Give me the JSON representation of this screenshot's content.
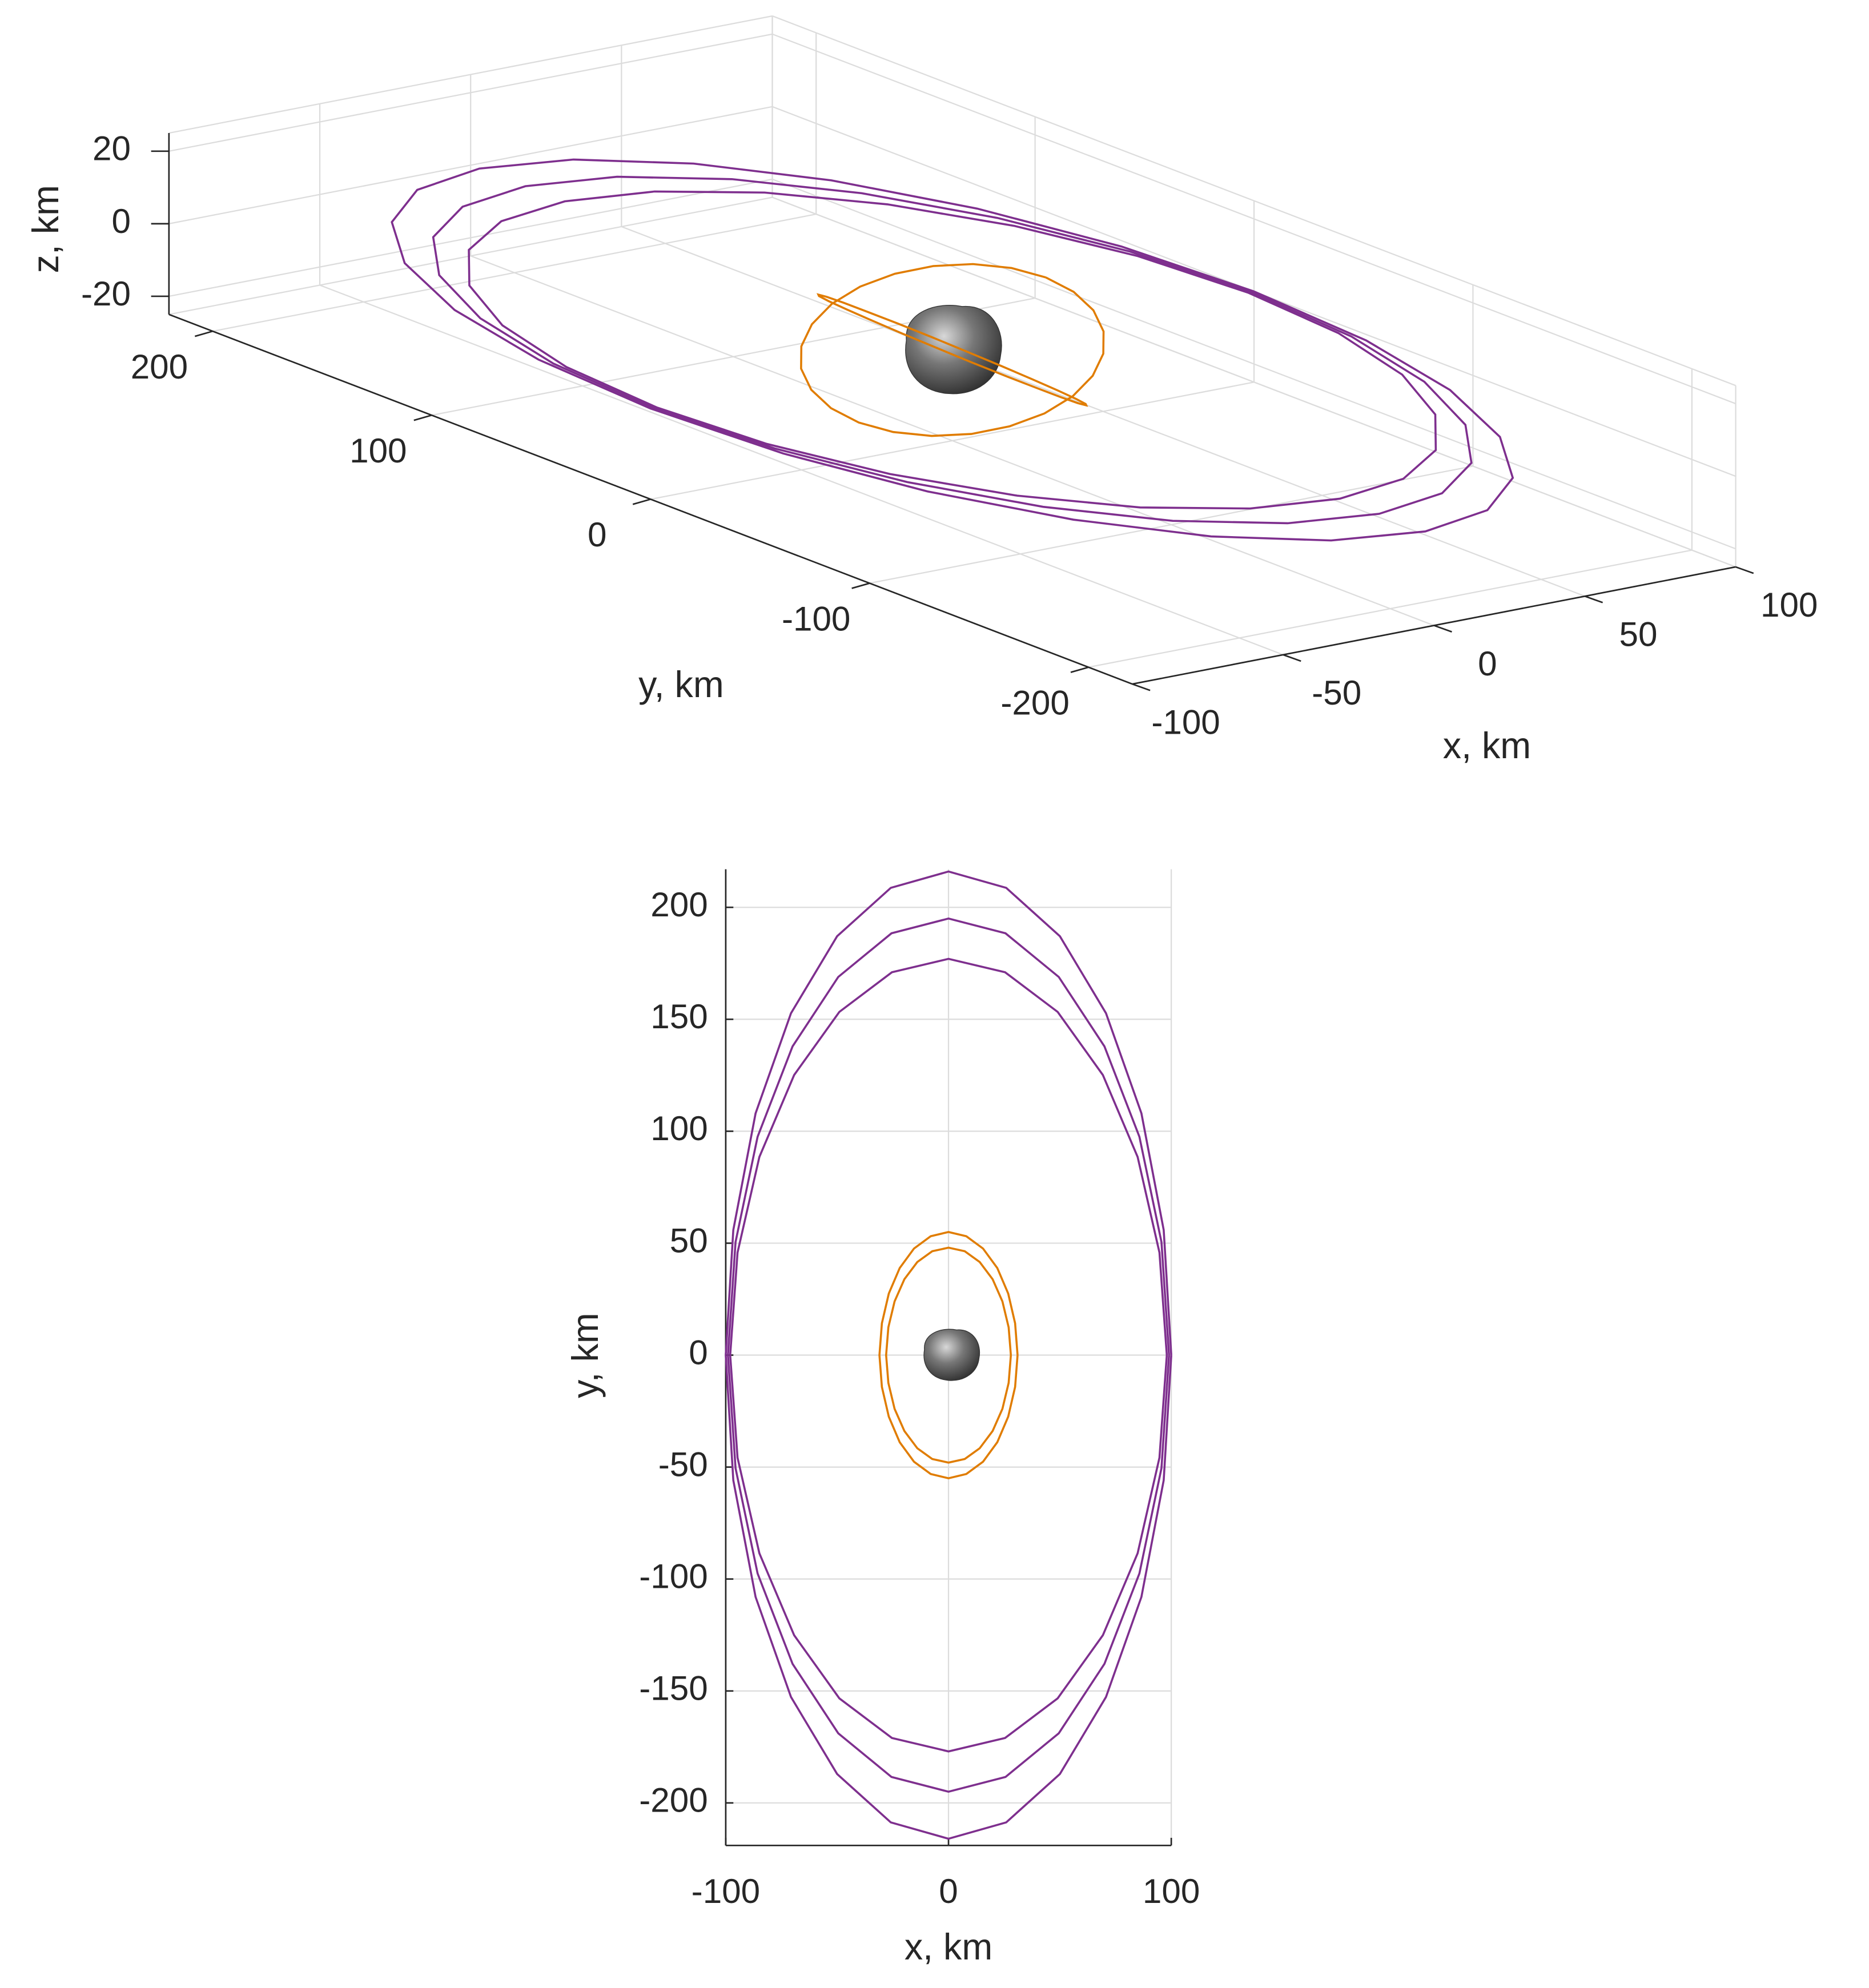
{
  "chart_data": [
    {
      "type": "line3d",
      "xlabel": "x, km",
      "ylabel": "y, km",
      "zlabel": "z, km",
      "xlim": [
        -100,
        100
      ],
      "ylim": [
        -220,
        220
      ],
      "zlim": [
        -25,
        25
      ],
      "xticks": [
        -100,
        -50,
        0,
        50,
        100
      ],
      "yticks": [
        -200,
        -100,
        0,
        100,
        200
      ],
      "zticks": [
        -20,
        0,
        20
      ],
      "grid": true,
      "series": [
        {
          "color": "#7e2f8e",
          "x": [
            100,
            96.6,
            86.6,
            70.7,
            50,
            25.9,
            0,
            -25.9,
            -50,
            -70.7,
            -86.6,
            -96.6,
            -100,
            -96.6,
            -86.6,
            -70.7,
            -50,
            -25.9,
            0,
            25.9,
            50,
            70.7,
            86.6,
            96.6,
            100
          ],
          "y": [
            0,
            55.9,
            108,
            152.7,
            187.1,
            208.7,
            216,
            208.7,
            187.1,
            152.7,
            108,
            55.9,
            0,
            -55.9,
            -108,
            -152.7,
            -187.1,
            -208.7,
            -216,
            -208.7,
            -187.1,
            -152.7,
            -108,
            -55.9,
            0
          ],
          "z": [
            0,
            0,
            0,
            0,
            0,
            0,
            0,
            0,
            0,
            0,
            0,
            0,
            0,
            0,
            0,
            0,
            0,
            0,
            0,
            0,
            0,
            0,
            0,
            0,
            0
          ]
        },
        {
          "color": "#7e2f8e",
          "x": [
            99,
            95.6,
            85.7,
            70,
            49.5,
            25.6,
            0,
            -25.6,
            -49.5,
            -70,
            -85.7,
            -95.6,
            -99,
            -95.6,
            -85.7,
            -70,
            -49.5,
            -25.6,
            0,
            25.6,
            49.5,
            70,
            85.7,
            95.6,
            99
          ],
          "y": [
            0,
            50.5,
            97.5,
            137.9,
            168.9,
            188.4,
            195,
            188.4,
            168.9,
            137.9,
            97.5,
            50.5,
            0,
            -50.5,
            -97.5,
            -137.9,
            -168.9,
            -188.4,
            -195,
            -188.4,
            -168.9,
            -137.9,
            -97.5,
            -50.5,
            0
          ],
          "z": [
            0,
            0,
            0,
            0,
            0,
            0,
            0,
            0,
            0,
            0,
            0,
            0,
            0,
            0,
            0,
            0,
            0,
            0,
            0,
            0,
            0,
            0,
            0,
            0,
            0
          ]
        },
        {
          "color": "#7e2f8e",
          "x": [
            98,
            94.7,
            84.9,
            69.3,
            49,
            25.4,
            0,
            -25.4,
            -49,
            -69.3,
            -84.9,
            -94.7,
            -98,
            -94.7,
            -84.9,
            -69.3,
            -49,
            -25.4,
            0,
            25.4,
            49,
            69.3,
            84.9,
            94.7,
            98
          ],
          "y": [
            0,
            45.8,
            88.5,
            125.1,
            153.3,
            171,
            177,
            171,
            153.3,
            125.1,
            88.5,
            45.8,
            0,
            -45.8,
            -88.5,
            -125.1,
            -153.3,
            -171,
            -177,
            -171,
            -153.3,
            -125.1,
            -88.5,
            -45.8,
            0
          ],
          "z": [
            0,
            0,
            0,
            0,
            0,
            0,
            0,
            0,
            0,
            0,
            0,
            0,
            0,
            0,
            0,
            0,
            0,
            0,
            0,
            0,
            0,
            0,
            0,
            0,
            0
          ]
        },
        {
          "color": "#e07c00",
          "x": [
            31,
            29.9,
            26.8,
            21.9,
            15.5,
            8,
            0,
            -8,
            -15.5,
            -21.9,
            -26.8,
            -29.9,
            -31,
            -29.9,
            -26.8,
            -21.9,
            -15.5,
            -8,
            0,
            8,
            15.5,
            21.9,
            26.8,
            29.9,
            31
          ],
          "y": [
            0,
            14.2,
            27.5,
            38.9,
            47.6,
            53.1,
            55,
            53.1,
            47.6,
            38.9,
            27.5,
            14.2,
            0,
            -14.2,
            -27.5,
            -38.9,
            -47.6,
            -53.1,
            -55,
            -53.1,
            -47.6,
            -38.9,
            -27.5,
            -14.2,
            0
          ],
          "z": [
            15,
            14.5,
            13,
            10.6,
            7.5,
            3.9,
            0,
            -3.9,
            -7.5,
            -10.6,
            -13,
            -14.5,
            -15,
            -14.5,
            -13,
            -10.6,
            -7.5,
            -3.9,
            0,
            3.9,
            7.5,
            10.6,
            13,
            14.5,
            15
          ]
        },
        {
          "color": "#e07c00",
          "x": [
            28,
            27,
            24.2,
            19.8,
            14,
            7.3,
            0,
            -7.3,
            -14,
            -19.8,
            -24.2,
            -27,
            -28,
            -27,
            -24.2,
            -19.8,
            -14,
            -7.3,
            0,
            7.3,
            14,
            19.8,
            24.2,
            27,
            28
          ],
          "y": [
            0,
            12.4,
            24,
            33.9,
            41.6,
            46.4,
            48,
            46.4,
            41.6,
            33.9,
            24,
            12.4,
            0,
            -12.4,
            -24,
            -33.9,
            -41.6,
            -46.4,
            -48,
            -46.4,
            -41.6,
            -33.9,
            -24,
            -12.4,
            0
          ],
          "z": [
            -15,
            -14.5,
            -13,
            -10.6,
            -7.5,
            -3.9,
            0,
            3.9,
            7.5,
            10.6,
            13,
            14.5,
            15,
            14.5,
            13,
            10.6,
            7.5,
            3.9,
            0,
            -3.9,
            -7.5,
            -10.6,
            -13,
            -14.5,
            -15
          ]
        }
      ]
    },
    {
      "type": "line",
      "xlabel": "x, km",
      "ylabel": "y, km",
      "xlim": [
        -100,
        100
      ],
      "ylim": [
        -219,
        217
      ],
      "xticks": [
        -100,
        0,
        100
      ],
      "yticks": [
        -200,
        -150,
        -100,
        -50,
        0,
        50,
        100,
        150,
        200
      ],
      "grid": true,
      "series": [
        {
          "color": "#7e2f8e",
          "x": [
            100,
            96.6,
            86.6,
            70.7,
            50,
            25.9,
            0,
            -25.9,
            -50,
            -70.7,
            -86.6,
            -96.6,
            -100,
            -96.6,
            -86.6,
            -70.7,
            -50,
            -25.9,
            0,
            25.9,
            50,
            70.7,
            86.6,
            96.6,
            100
          ],
          "values": [
            0,
            55.9,
            108,
            152.7,
            187.1,
            208.7,
            216,
            208.7,
            187.1,
            152.7,
            108,
            55.9,
            0,
            -55.9,
            -108,
            -152.7,
            -187.1,
            -208.7,
            -216,
            -208.7,
            -187.1,
            -152.7,
            -108,
            -55.9,
            0
          ]
        },
        {
          "color": "#7e2f8e",
          "x": [
            99,
            95.6,
            85.7,
            70,
            49.5,
            25.6,
            0,
            -25.6,
            -49.5,
            -70,
            -85.7,
            -95.6,
            -99,
            -95.6,
            -85.7,
            -70,
            -49.5,
            -25.6,
            0,
            25.6,
            49.5,
            70,
            85.7,
            95.6,
            99
          ],
          "values": [
            0,
            50.5,
            97.5,
            137.9,
            168.9,
            188.4,
            195,
            188.4,
            168.9,
            137.9,
            97.5,
            50.5,
            0,
            -50.5,
            -97.5,
            -137.9,
            -168.9,
            -188.4,
            -195,
            -188.4,
            -168.9,
            -137.9,
            -97.5,
            -50.5,
            0
          ]
        },
        {
          "color": "#7e2f8e",
          "x": [
            98,
            94.7,
            84.9,
            69.3,
            49,
            25.4,
            0,
            -25.4,
            -49,
            -69.3,
            -84.9,
            -94.7,
            -98,
            -94.7,
            -84.9,
            -69.3,
            -49,
            -25.4,
            0,
            25.4,
            49,
            69.3,
            84.9,
            94.7,
            98
          ],
          "values": [
            0,
            45.8,
            88.5,
            125.1,
            153.3,
            171,
            177,
            171,
            153.3,
            125.1,
            88.5,
            45.8,
            0,
            -45.8,
            -88.5,
            -125.1,
            -153.3,
            -171,
            -177,
            -171,
            -153.3,
            -125.1,
            -88.5,
            -45.8,
            0
          ]
        },
        {
          "color": "#e07c00",
          "x": [
            31,
            29.9,
            26.8,
            21.9,
            15.5,
            8,
            0,
            -8,
            -15.5,
            -21.9,
            -26.8,
            -29.9,
            -31,
            -29.9,
            -26.8,
            -21.9,
            -15.5,
            -8,
            0,
            8,
            15.5,
            21.9,
            26.8,
            29.9,
            31
          ],
          "values": [
            0,
            14.2,
            27.5,
            38.9,
            47.6,
            53.1,
            55,
            53.1,
            47.6,
            38.9,
            27.5,
            14.2,
            0,
            -14.2,
            -27.5,
            -38.9,
            -47.6,
            -53.1,
            -55,
            -53.1,
            -47.6,
            -38.9,
            -27.5,
            -14.2,
            0
          ]
        },
        {
          "color": "#e07c00",
          "x": [
            28,
            27,
            24.2,
            19.8,
            14,
            7.3,
            0,
            -7.3,
            -14,
            -19.8,
            -24.2,
            -27,
            -28,
            -27,
            -24.2,
            -19.8,
            -14,
            -7.3,
            0,
            7.3,
            14,
            19.8,
            24.2,
            27,
            28
          ],
          "values": [
            0,
            12.4,
            24,
            33.9,
            41.6,
            46.4,
            48,
            46.4,
            41.6,
            33.9,
            24,
            12.4,
            0,
            -12.4,
            -24,
            -33.9,
            -41.6,
            -46.4,
            -48,
            -46.4,
            -41.6,
            -33.9,
            -24,
            -12.4,
            0
          ]
        }
      ]
    }
  ]
}
